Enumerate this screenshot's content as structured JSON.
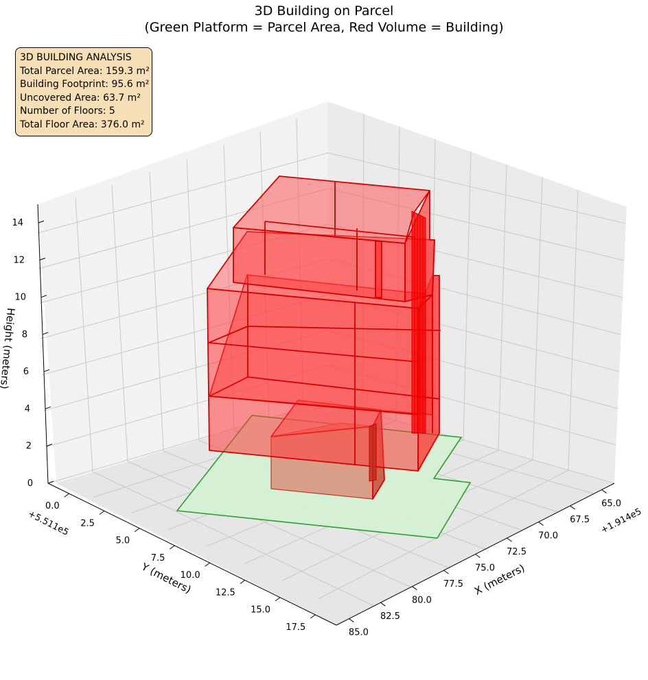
{
  "title": {
    "line1": "3D Building on Parcel",
    "line2": "(Green Platform = Parcel Area, Red Volume = Building)"
  },
  "stats": {
    "heading": "3D BUILDING ANALYSIS",
    "total_parcel_area": "Total Parcel Area: 159.3 m²",
    "building_footprint": "Building Footprint: 95.6 m²",
    "uncovered_area": "Uncovered Area: 63.7 m²",
    "num_floors": "Number of Floors: 5",
    "total_floor_area": "Total Floor Area: 376.0 m²"
  },
  "colors": {
    "parcel_fill": "#d4f0d4",
    "parcel_edge": "#2ca02c",
    "building_fill": "#ff3b3b",
    "building_edge": "#d40000",
    "box_fill": "#f6deb6"
  },
  "chart_data": {
    "type": "3d-polygon",
    "xlabel": "X (meters)",
    "ylabel": "Y (meters)",
    "zlabel": "Height (meters)",
    "x_offset_label": "+1.914e5",
    "y_offset_label": "+5.511e5",
    "x_ticks": [
      "65.0",
      "67.5",
      "70.0",
      "72.5",
      "75.0",
      "77.5",
      "80.0",
      "82.5",
      "85.0"
    ],
    "y_ticks": [
      "0.0",
      "2.5",
      "5.0",
      "7.5",
      "10.0",
      "12.5",
      "15.0",
      "17.5"
    ],
    "z_ticks": [
      "0",
      "2",
      "4",
      "6",
      "8",
      "10",
      "12",
      "14"
    ],
    "xlim": [
      64,
      86
    ],
    "ylim": [
      -1.5,
      19
    ],
    "zlim": [
      0,
      15
    ],
    "grid": true,
    "series": [
      {
        "name": "Parcel Area",
        "kind": "platform",
        "z": 0
      },
      {
        "name": "Building",
        "kind": "volume",
        "floors": 5
      }
    ]
  }
}
